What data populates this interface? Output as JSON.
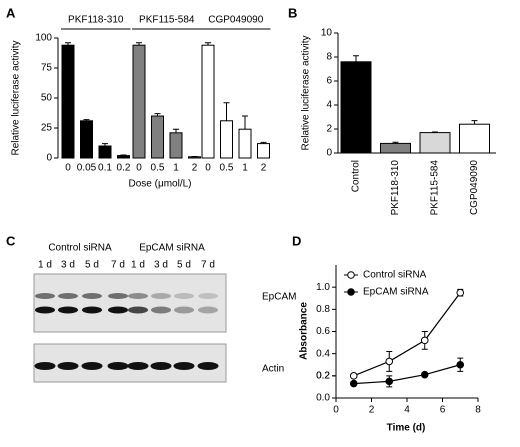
{
  "chart_data": [
    {
      "type": "bar",
      "panel": "A",
      "y_label": "Relative luciferase activity",
      "x_label": "Dose (μmol/L)",
      "ylim": [
        0,
        100
      ],
      "yticks": [
        0,
        25,
        50,
        75,
        100
      ],
      "groups": [
        {
          "name": "PKF118-310",
          "color": "#000000",
          "categories": [
            "0",
            "0.05",
            "0.1",
            "0.2"
          ],
          "values": [
            94,
            31,
            10,
            2
          ],
          "errors": [
            2,
            1,
            2,
            0.5
          ]
        },
        {
          "name": "PKF115-584",
          "color": "#808080",
          "categories": [
            "0",
            "0.5",
            "1",
            "2"
          ],
          "values": [
            94,
            35,
            21,
            1
          ],
          "errors": [
            2,
            2,
            3,
            0.3
          ]
        },
        {
          "name": "CGP049090",
          "color": "#ffffff",
          "categories": [
            "0",
            "0.5",
            "1",
            "2"
          ],
          "values": [
            94,
            31,
            24,
            12
          ],
          "errors": [
            2,
            15,
            11,
            1
          ]
        }
      ]
    },
    {
      "type": "bar",
      "panel": "B",
      "y_label": "Relative luciferase activity",
      "ylim": [
        0,
        10
      ],
      "yticks": [
        0,
        2,
        4,
        6,
        8,
        10
      ],
      "categories": [
        "Control",
        "PKF118-310",
        "PKF115-584",
        "CGP049090"
      ],
      "values": [
        7.6,
        0.8,
        1.7,
        2.4
      ],
      "errors": [
        0.5,
        0.1,
        0.05,
        0.3
      ],
      "colors": [
        "#000000",
        "#808080",
        "#d8d8d8",
        "#ffffff"
      ]
    },
    {
      "type": "line",
      "panel": "D",
      "y_label": "Absorbance",
      "x_label": "Time (d)",
      "xlim": [
        0,
        8
      ],
      "xticks": [
        0,
        2,
        4,
        6,
        8
      ],
      "ylim": [
        0,
        1.2
      ],
      "yticks": [
        {
          "value": 0,
          "label": "0.0"
        },
        0.2,
        0.4,
        0.6,
        0.8,
        {
          "value": 1,
          "label": "1.0"
        },
        0.2
      ],
      "x": [
        1,
        3,
        5,
        7
      ],
      "legend": "upper left",
      "series": [
        {
          "name": "Control siRNA",
          "color": "#000000",
          "marker_fill": "#ffffff",
          "values": [
            0.2,
            0.33,
            0.52,
            0.95
          ],
          "errors": [
            0.01,
            0.09,
            0.08,
            0.03
          ]
        },
        {
          "name": "EpCAM siRNA",
          "color": "#000000",
          "marker_fill": "#000000",
          "values": [
            0.13,
            0.15,
            0.21,
            0.3
          ],
          "errors": [
            0.01,
            0.05,
            0.01,
            0.06
          ]
        }
      ]
    }
  ],
  "blot": {
    "panel": "C",
    "groups": [
      "Control siRNA",
      "EpCAM siRNA"
    ],
    "lanes": [
      "1 d",
      "3 d",
      "5 d",
      "7 d",
      "1 d",
      "3 d",
      "5 d",
      "7 d"
    ],
    "bands": [
      "EpCAM",
      "Actin"
    ]
  }
}
